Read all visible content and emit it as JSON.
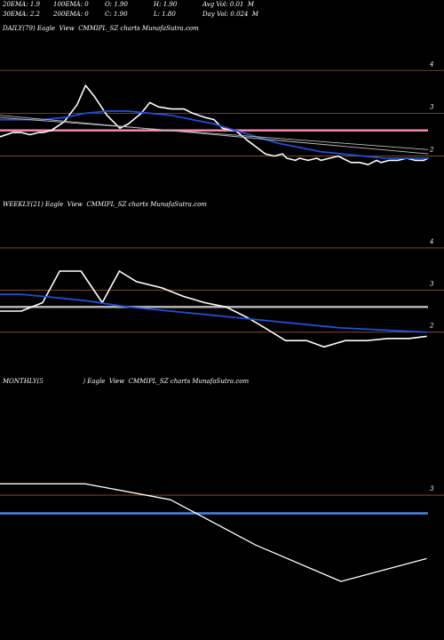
{
  "header": {
    "row1": [
      {
        "id": "ema20",
        "text": "20EMA: 1.9"
      },
      {
        "id": "ema100",
        "text": "100EMA: 0"
      },
      {
        "id": "open",
        "text": "O: 1.90"
      },
      {
        "id": "high",
        "text": "H: 1.90"
      },
      {
        "id": "avgvol",
        "text": "Avg Vol: 0.01  M"
      }
    ],
    "row2": [
      {
        "id": "ema30",
        "text": "30EMA: 2.2"
      },
      {
        "id": "ema200",
        "text": "200EMA: 0"
      },
      {
        "id": "close",
        "text": "C: 1.90"
      },
      {
        "id": "low",
        "text": "L: 1.80"
      },
      {
        "id": "dayvol",
        "text": "Day Vol: 0.024  M"
      }
    ]
  },
  "colors": {
    "background": "#000000",
    "price": "#ffffff",
    "ema_blue": "#1f4fd8",
    "ema_gray": "#bdbdbd",
    "pink_level": "#ff8fb0",
    "brown_grid": "#8b5a2b",
    "monthly_blue": "#4a86e8"
  },
  "chart_data": [
    {
      "type": "line",
      "label": "DAILY(79) Eagle  View  CMMIPL_SZ charts MunafaSutra.com",
      "ylim": [
        1.7,
        4.4
      ],
      "yticks": [
        4,
        3,
        2
      ],
      "grid": "horizontal",
      "reference_lines": [
        {
          "y": 2.6,
          "color": "#ff8fb0"
        }
      ],
      "series": [
        {
          "role": "price",
          "color": "#ffffff",
          "width": 1.6,
          "x": [
            0,
            3,
            5,
            7,
            9,
            10,
            12,
            15,
            18,
            20,
            22,
            25,
            28,
            30,
            33,
            35,
            37,
            40,
            43,
            45,
            48,
            50,
            52,
            55,
            58,
            60,
            62,
            64,
            66,
            67,
            69,
            70,
            72,
            74,
            75,
            77,
            79,
            80,
            82,
            84,
            86,
            88,
            89,
            91,
            93,
            95,
            97,
            99,
            100
          ],
          "y": [
            2.45,
            2.55,
            2.55,
            2.5,
            2.55,
            2.55,
            2.6,
            2.8,
            3.2,
            3.65,
            3.4,
            2.95,
            2.65,
            2.75,
            3.0,
            3.25,
            3.15,
            3.1,
            3.1,
            3.0,
            2.9,
            2.85,
            2.65,
            2.6,
            2.35,
            2.2,
            2.05,
            2.0,
            2.05,
            1.95,
            1.9,
            1.95,
            1.9,
            1.95,
            1.9,
            1.95,
            2.0,
            1.95,
            1.85,
            1.85,
            1.8,
            1.9,
            1.85,
            1.9,
            1.9,
            1.95,
            1.9,
            1.9,
            1.95
          ]
        },
        {
          "role": "ema-blue",
          "color": "#1f4fd8",
          "width": 1.8,
          "x": [
            0,
            5,
            10,
            15,
            20,
            25,
            30,
            35,
            40,
            45,
            50,
            55,
            60,
            65,
            70,
            75,
            80,
            85,
            90,
            95,
            100
          ],
          "y": [
            2.85,
            2.85,
            2.85,
            2.9,
            3.0,
            3.05,
            3.05,
            3.0,
            2.95,
            2.85,
            2.75,
            2.6,
            2.45,
            2.3,
            2.2,
            2.1,
            2.05,
            2.0,
            1.95,
            1.95,
            1.95
          ]
        },
        {
          "role": "ema-gray-1",
          "color": "#bdbdbd",
          "width": 0.9,
          "x": [
            0,
            100
          ],
          "y": [
            2.95,
            2.05
          ]
        },
        {
          "role": "ema-gray-2",
          "color": "#bdbdbd",
          "width": 0.9,
          "x": [
            0,
            100
          ],
          "y": [
            2.9,
            2.15
          ]
        }
      ]
    },
    {
      "type": "line",
      "label": "WEEKLY(21) Eagle  View  CMMIPL_SZ charts MunafaSutra.com",
      "ylim": [
        1.55,
        4.4
      ],
      "yticks": [
        4,
        3,
        2
      ],
      "grid": "horizontal",
      "reference_lines": [
        {
          "y": 2.6,
          "color": "#bdbdbd"
        }
      ],
      "series": [
        {
          "role": "price",
          "color": "#ffffff",
          "width": 1.6,
          "x": [
            0,
            5,
            10,
            14,
            19,
            24,
            28,
            32,
            38,
            43,
            48,
            53,
            58,
            63,
            67,
            72,
            76,
            81,
            86,
            91,
            96,
            100
          ],
          "y": [
            2.5,
            2.5,
            2.7,
            3.45,
            3.45,
            2.7,
            3.45,
            3.2,
            3.05,
            2.85,
            2.7,
            2.6,
            2.35,
            2.05,
            1.8,
            1.8,
            1.65,
            1.8,
            1.8,
            1.85,
            1.85,
            1.9
          ]
        },
        {
          "role": "ema-blue",
          "color": "#1f4fd8",
          "width": 1.8,
          "x": [
            0,
            5,
            10,
            20,
            30,
            40,
            50,
            60,
            70,
            80,
            90,
            100
          ],
          "y": [
            2.9,
            2.9,
            2.85,
            2.75,
            2.6,
            2.5,
            2.4,
            2.3,
            2.2,
            2.1,
            2.05,
            2.0
          ]
        }
      ]
    },
    {
      "type": "line",
      "label": "MONTHLY(5                    ) Eagle  View  CMMIPL_SZ charts MunafaSutra.com",
      "ylim": [
        0.2,
        5.0
      ],
      "yticks": [
        3
      ],
      "grid": "horizontal",
      "reference_lines": [
        {
          "y": 2.6,
          "color": "#4a86e8"
        }
      ],
      "series": [
        {
          "role": "price",
          "color": "#ffffff",
          "width": 1.3,
          "x": [
            0,
            20,
            40,
            60,
            80,
            100
          ],
          "y": [
            3.25,
            3.25,
            2.9,
            1.9,
            1.1,
            1.6
          ]
        }
      ]
    }
  ]
}
